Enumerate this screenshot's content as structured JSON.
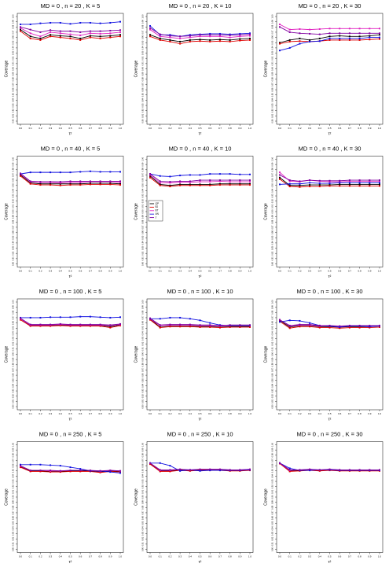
{
  "axes": {
    "xlabel": "τ²",
    "ylabel": "Coverage",
    "xlim": [
      0,
      1
    ],
    "ylim": [
      0.8,
      1.0
    ],
    "x": [
      0,
      0.1,
      0.2,
      0.3,
      0.4,
      0.5,
      0.6,
      0.7,
      0.8,
      0.9,
      1
    ],
    "xticks": [
      {
        "value": 0,
        "label": "0.0"
      },
      0.1,
      0.2,
      0.3,
      0.4,
      0.5,
      0.6,
      0.7,
      0.8,
      0.9,
      {
        "value": 1,
        "label": "1.0"
      }
    ],
    "yticks": [
      {
        "value": 0.8,
        "label": "0.80"
      },
      0.81,
      0.82,
      0.83,
      0.84,
      0.85,
      0.86,
      0.87,
      0.88,
      0.89,
      {
        "value": 0.9,
        "label": "0.90"
      },
      0.91,
      0.92,
      0.93,
      0.94,
      0.95,
      0.96,
      0.97,
      0.98,
      0.99,
      {
        "value": 1.0,
        "label": "1.00"
      }
    ]
  },
  "series_style": {
    "names": [
      "QP",
      "BJ",
      "BT",
      "AN",
      "J"
    ],
    "colors": [
      "#000000",
      "#e00000",
      "#e020c0",
      "#1010e0",
      "#8000a0"
    ]
  },
  "chart_data": [
    {
      "type": "line",
      "title": "MD = 0 , n = 20 , K = 5",
      "series": [
        {
          "values": [
            0.975,
            0.962,
            0.958,
            0.965,
            0.963,
            0.962,
            0.958,
            0.963,
            0.962,
            0.963,
            0.965
          ]
        },
        {
          "values": [
            0.972,
            0.958,
            0.955,
            0.962,
            0.96,
            0.958,
            0.955,
            0.96,
            0.958,
            0.96,
            0.962
          ]
        },
        {
          "values": [
            0.978,
            0.968,
            0.962,
            0.97,
            0.968,
            0.966,
            0.964,
            0.968,
            0.967,
            0.968,
            0.97
          ]
        },
        {
          "values": [
            0.985,
            0.985,
            0.987,
            0.988,
            0.988,
            0.986,
            0.988,
            0.988,
            0.987,
            0.988,
            0.99
          ]
        },
        {
          "values": [
            0.98,
            0.975,
            0.97,
            0.974,
            0.972,
            0.972,
            0.97,
            0.972,
            0.972,
            0.973,
            0.974
          ]
        }
      ]
    },
    {
      "type": "line",
      "title": "MD = 0 , n = 20 , K = 10",
      "series": [
        {
          "values": [
            0.965,
            0.958,
            0.955,
            0.952,
            0.955,
            0.956,
            0.955,
            0.956,
            0.955,
            0.957,
            0.958
          ]
        },
        {
          "values": [
            0.962,
            0.955,
            0.952,
            0.948,
            0.952,
            0.953,
            0.952,
            0.953,
            0.952,
            0.954,
            0.955
          ]
        },
        {
          "values": [
            0.975,
            0.962,
            0.96,
            0.958,
            0.96,
            0.962,
            0.962,
            0.962,
            0.96,
            0.962,
            0.963
          ]
        },
        {
          "values": [
            0.982,
            0.965,
            0.965,
            0.962,
            0.965,
            0.966,
            0.967,
            0.967,
            0.966,
            0.967,
            0.968
          ]
        },
        {
          "values": [
            0.978,
            0.966,
            0.963,
            0.962,
            0.963,
            0.965,
            0.965,
            0.965,
            0.964,
            0.965,
            0.966
          ]
        }
      ]
    },
    {
      "type": "line",
      "title": "MD = 0 , n = 20 , K = 30",
      "series": [
        {
          "values": [
            0.95,
            0.955,
            0.958,
            0.955,
            0.958,
            0.962,
            0.963,
            0.962,
            0.962,
            0.963,
            0.965
          ]
        },
        {
          "values": [
            0.948,
            0.952,
            0.953,
            0.952,
            0.953,
            0.955,
            0.955,
            0.955,
            0.955,
            0.956,
            0.957
          ]
        },
        {
          "values": [
            0.985,
            0.975,
            0.976,
            0.975,
            0.976,
            0.977,
            0.977,
            0.977,
            0.977,
            0.977,
            0.977
          ]
        },
        {
          "values": [
            0.935,
            0.94,
            0.948,
            0.952,
            0.953,
            0.958,
            0.958,
            0.958,
            0.958,
            0.96,
            0.96
          ]
        },
        {
          "values": [
            0.98,
            0.97,
            0.968,
            0.967,
            0.966,
            0.968,
            0.968,
            0.968,
            0.968,
            0.968,
            0.968
          ]
        }
      ]
    },
    {
      "type": "line",
      "title": "MD = 0 , n = 40 , K = 5",
      "series": [
        {
          "values": [
            0.97,
            0.955,
            0.953,
            0.953,
            0.953,
            0.953,
            0.953,
            0.954,
            0.954,
            0.954,
            0.953
          ]
        },
        {
          "values": [
            0.968,
            0.953,
            0.951,
            0.951,
            0.95,
            0.951,
            0.951,
            0.952,
            0.952,
            0.952,
            0.951
          ]
        },
        {
          "values": [
            0.972,
            0.957,
            0.956,
            0.956,
            0.955,
            0.956,
            0.956,
            0.957,
            0.957,
            0.957,
            0.956
          ]
        },
        {
          "values": [
            0.972,
            0.975,
            0.975,
            0.975,
            0.975,
            0.975,
            0.976,
            0.977,
            0.976,
            0.976,
            0.976
          ]
        },
        {
          "values": [
            0.973,
            0.958,
            0.957,
            0.957,
            0.957,
            0.958,
            0.958,
            0.958,
            0.958,
            0.958,
            0.958
          ]
        }
      ]
    },
    {
      "type": "line",
      "title": "MD = 0 , n = 40 , K = 10",
      "legend": "left",
      "series": [
        {
          "values": [
            0.968,
            0.952,
            0.95,
            0.952,
            0.952,
            0.952,
            0.952,
            0.953,
            0.953,
            0.953,
            0.953
          ]
        },
        {
          "values": [
            0.965,
            0.95,
            0.948,
            0.95,
            0.95,
            0.95,
            0.95,
            0.951,
            0.951,
            0.951,
            0.951
          ]
        },
        {
          "values": [
            0.97,
            0.955,
            0.955,
            0.956,
            0.956,
            0.957,
            0.957,
            0.958,
            0.957,
            0.957,
            0.957
          ]
        },
        {
          "values": [
            0.972,
            0.968,
            0.967,
            0.969,
            0.97,
            0.97,
            0.972,
            0.972,
            0.972,
            0.971,
            0.971
          ]
        },
        {
          "values": [
            0.972,
            0.958,
            0.957,
            0.958,
            0.958,
            0.96,
            0.96,
            0.96,
            0.96,
            0.96,
            0.96
          ]
        }
      ]
    },
    {
      "type": "line",
      "title": "MD = 0 , n = 40 , K = 30",
      "series": [
        {
          "values": [
            0.965,
            0.95,
            0.95,
            0.951,
            0.951,
            0.951,
            0.952,
            0.952,
            0.952,
            0.952,
            0.952
          ]
        },
        {
          "values": [
            0.962,
            0.948,
            0.947,
            0.948,
            0.948,
            0.949,
            0.949,
            0.949,
            0.949,
            0.949,
            0.949
          ]
        },
        {
          "values": [
            0.975,
            0.958,
            0.957,
            0.96,
            0.958,
            0.957,
            0.957,
            0.958,
            0.958,
            0.958,
            0.958
          ]
        },
        {
          "values": [
            0.952,
            0.953,
            0.953,
            0.955,
            0.954,
            0.954,
            0.955,
            0.955,
            0.955,
            0.955,
            0.955
          ]
        },
        {
          "values": [
            0.97,
            0.96,
            0.958,
            0.96,
            0.959,
            0.959,
            0.959,
            0.96,
            0.96,
            0.96,
            0.96
          ]
        }
      ]
    },
    {
      "type": "line",
      "title": "MD = 0 , n = 100 , K = 5",
      "series": [
        {
          "values": [
            0.968,
            0.955,
            0.955,
            0.955,
            0.956,
            0.955,
            0.955,
            0.955,
            0.955,
            0.953,
            0.956
          ]
        },
        {
          "values": [
            0.966,
            0.954,
            0.954,
            0.954,
            0.955,
            0.954,
            0.954,
            0.954,
            0.954,
            0.951,
            0.955
          ]
        },
        {
          "values": [
            0.968,
            0.956,
            0.956,
            0.956,
            0.957,
            0.956,
            0.956,
            0.956,
            0.956,
            0.955,
            0.957
          ]
        },
        {
          "values": [
            0.97,
            0.97,
            0.97,
            0.971,
            0.971,
            0.971,
            0.972,
            0.972,
            0.971,
            0.97,
            0.971
          ]
        },
        {
          "values": [
            0.969,
            0.957,
            0.957,
            0.957,
            0.958,
            0.957,
            0.957,
            0.957,
            0.957,
            0.956,
            0.958
          ]
        }
      ]
    },
    {
      "type": "line",
      "title": "MD = 0 , n = 100 , K = 10",
      "series": [
        {
          "values": [
            0.968,
            0.952,
            0.954,
            0.954,
            0.954,
            0.953,
            0.953,
            0.952,
            0.953,
            0.953,
            0.953
          ]
        },
        {
          "values": [
            0.966,
            0.951,
            0.953,
            0.953,
            0.953,
            0.952,
            0.952,
            0.951,
            0.952,
            0.952,
            0.952
          ]
        },
        {
          "values": [
            0.968,
            0.955,
            0.956,
            0.956,
            0.956,
            0.955,
            0.955,
            0.954,
            0.955,
            0.955,
            0.955
          ]
        },
        {
          "values": [
            0.968,
            0.968,
            0.97,
            0.97,
            0.968,
            0.965,
            0.96,
            0.956,
            0.955,
            0.955,
            0.955
          ]
        },
        {
          "values": [
            0.969,
            0.956,
            0.957,
            0.957,
            0.957,
            0.956,
            0.956,
            0.955,
            0.956,
            0.956,
            0.956
          ]
        }
      ]
    },
    {
      "type": "line",
      "title": "MD = 0 , n = 100 , K = 30",
      "series": [
        {
          "values": [
            0.965,
            0.952,
            0.955,
            0.955,
            0.953,
            0.953,
            0.952,
            0.953,
            0.953,
            0.953,
            0.954
          ]
        },
        {
          "values": [
            0.963,
            0.95,
            0.953,
            0.953,
            0.951,
            0.951,
            0.95,
            0.951,
            0.951,
            0.951,
            0.952
          ]
        },
        {
          "values": [
            0.966,
            0.954,
            0.956,
            0.956,
            0.954,
            0.954,
            0.953,
            0.954,
            0.954,
            0.954,
            0.955
          ]
        },
        {
          "values": [
            0.962,
            0.965,
            0.964,
            0.96,
            0.955,
            0.954,
            0.952,
            0.954,
            0.954,
            0.953,
            0.954
          ]
        },
        {
          "values": [
            0.966,
            0.955,
            0.957,
            0.957,
            0.955,
            0.955,
            0.954,
            0.955,
            0.955,
            0.955,
            0.955
          ]
        }
      ]
    },
    {
      "type": "line",
      "title": "MD = 0 , n = 250 , K = 5",
      "series": [
        {
          "values": [
            0.958,
            0.95,
            0.95,
            0.949,
            0.949,
            0.95,
            0.95,
            0.95,
            0.948,
            0.95,
            0.949
          ]
        },
        {
          "values": [
            0.957,
            0.949,
            0.949,
            0.948,
            0.948,
            0.949,
            0.949,
            0.949,
            0.947,
            0.949,
            0.948
          ]
        },
        {
          "values": [
            0.959,
            0.951,
            0.951,
            0.95,
            0.95,
            0.951,
            0.951,
            0.951,
            0.949,
            0.951,
            0.95
          ]
        },
        {
          "values": [
            0.962,
            0.962,
            0.962,
            0.961,
            0.96,
            0.957,
            0.954,
            0.95,
            0.95,
            0.948,
            0.946
          ]
        },
        {
          "values": [
            0.96,
            0.951,
            0.951,
            0.951,
            0.95,
            0.951,
            0.951,
            0.951,
            0.95,
            0.951,
            0.95
          ]
        }
      ]
    },
    {
      "type": "line",
      "title": "MD = 0 , n = 250 , K = 10",
      "series": [
        {
          "values": [
            0.964,
            0.95,
            0.95,
            0.952,
            0.951,
            0.952,
            0.952,
            0.952,
            0.951,
            0.951,
            0.952
          ]
        },
        {
          "values": [
            0.963,
            0.949,
            0.949,
            0.951,
            0.95,
            0.951,
            0.951,
            0.951,
            0.95,
            0.95,
            0.951
          ]
        },
        {
          "values": [
            0.965,
            0.951,
            0.951,
            0.953,
            0.952,
            0.953,
            0.953,
            0.953,
            0.952,
            0.952,
            0.953
          ]
        },
        {
          "values": [
            0.965,
            0.965,
            0.96,
            0.95,
            0.952,
            0.95,
            0.951,
            0.951,
            0.951,
            0.951,
            0.952
          ]
        },
        {
          "values": [
            0.965,
            0.952,
            0.952,
            0.953,
            0.952,
            0.953,
            0.953,
            0.953,
            0.952,
            0.952,
            0.953
          ]
        }
      ]
    },
    {
      "type": "line",
      "title": "MD = 0 , n = 250 , K = 30",
      "series": [
        {
          "values": [
            0.965,
            0.95,
            0.951,
            0.952,
            0.951,
            0.952,
            0.951,
            0.951,
            0.951,
            0.951,
            0.951
          ]
        },
        {
          "values": [
            0.964,
            0.949,
            0.95,
            0.951,
            0.95,
            0.951,
            0.95,
            0.95,
            0.95,
            0.95,
            0.95
          ]
        },
        {
          "values": [
            0.965,
            0.951,
            0.952,
            0.953,
            0.952,
            0.953,
            0.952,
            0.952,
            0.952,
            0.952,
            0.952
          ]
        },
        {
          "values": [
            0.965,
            0.955,
            0.951,
            0.951,
            0.952,
            0.952,
            0.951,
            0.951,
            0.951,
            0.951,
            0.951
          ]
        },
        {
          "values": [
            0.965,
            0.952,
            0.952,
            0.953,
            0.952,
            0.953,
            0.952,
            0.952,
            0.952,
            0.952,
            0.952
          ]
        }
      ]
    }
  ]
}
